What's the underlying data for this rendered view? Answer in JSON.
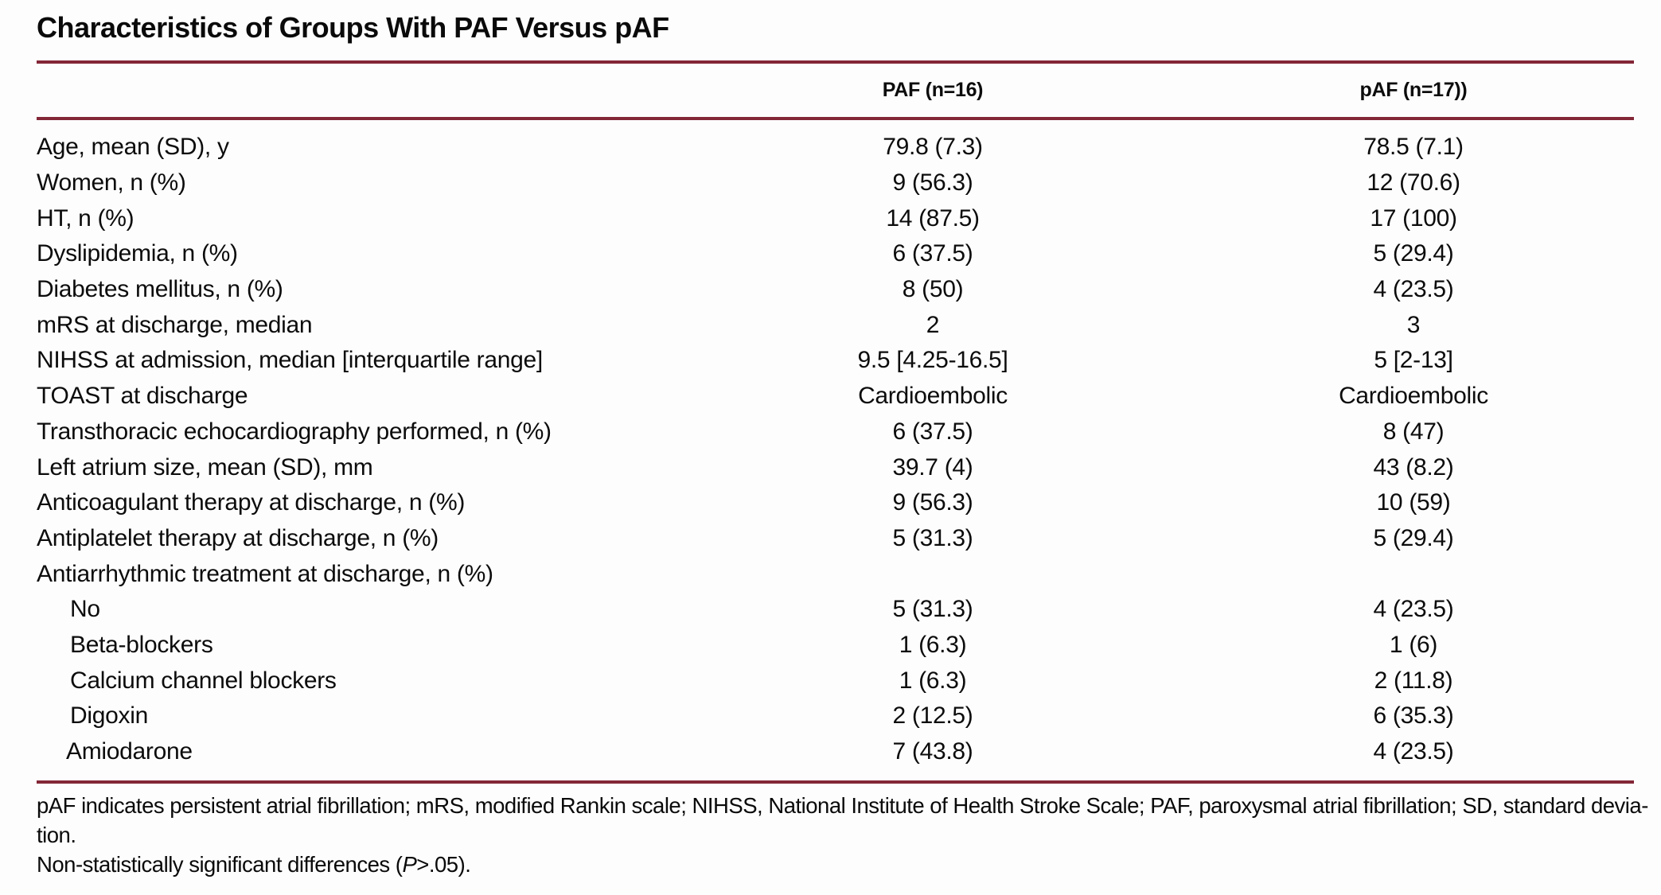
{
  "title": "Characteristics of Groups With PAF Versus pAF",
  "columns": [
    "PAF (n=16)",
    "pAF (n=17))"
  ],
  "rows": [
    {
      "label": "Age, mean (SD), y",
      "paf": "79.8 (7.3)",
      "ppaf": "78.5 (7.1)",
      "indent": 0
    },
    {
      "label": "Women, n (%)",
      "paf": "9 (56.3)",
      "ppaf": "12 (70.6)",
      "indent": 0
    },
    {
      "label": "HT, n (%)",
      "paf": "14 (87.5)",
      "ppaf": "17 (100)",
      "indent": 0
    },
    {
      "label": "Dyslipidemia, n (%)",
      "paf": "6 (37.5)",
      "ppaf": "5 (29.4)",
      "indent": 0
    },
    {
      "label": "Diabetes mellitus, n (%)",
      "paf": "8 (50)",
      "ppaf": "4 (23.5)",
      "indent": 0
    },
    {
      "label": "mRS at discharge, median",
      "paf": "2",
      "ppaf": "3",
      "indent": 0
    },
    {
      "label": "NIHSS at admission, median [interquartile range]",
      "paf": "9.5 [4.25-16.5]",
      "ppaf": "5 [2-13]",
      "indent": 0
    },
    {
      "label": "TOAST at discharge",
      "paf": "Cardioembolic",
      "ppaf": "Cardioembolic",
      "indent": 0
    },
    {
      "label": "Transthoracic echocardiography performed, n (%)",
      "paf": "6 (37.5)",
      "ppaf": "8 (47)",
      "indent": 0
    },
    {
      "label": "Left atrium size, mean (SD), mm",
      "paf": "39.7 (4)",
      "ppaf": "43 (8.2)",
      "indent": 0
    },
    {
      "label": "Anticoagulant therapy at discharge, n (%)",
      "paf": "9 (56.3)",
      "ppaf": "10 (59)",
      "indent": 0
    },
    {
      "label": "Antiplatelet therapy at discharge, n (%)",
      "paf": "5 (31.3)",
      "ppaf": "5 (29.4)",
      "indent": 0
    },
    {
      "label": "Antiarrhythmic treatment at discharge, n (%)",
      "paf": "",
      "ppaf": "",
      "indent": 0
    },
    {
      "label": "No",
      "paf": "5 (31.3)",
      "ppaf": "4 (23.5)",
      "indent": 2
    },
    {
      "label": "Beta-blockers",
      "paf": "1 (6.3)",
      "ppaf": "1 (6)",
      "indent": 2
    },
    {
      "label": "Calcium channel blockers",
      "paf": "1 (6.3)",
      "ppaf": "2 (11.8)",
      "indent": 2
    },
    {
      "label": "Digoxin",
      "paf": "2 (12.5)",
      "ppaf": "6 (35.3)",
      "indent": 2
    },
    {
      "label": "Amiodarone",
      "paf": "7 (43.8)",
      "ppaf": "4 (23.5)",
      "indent": 1
    }
  ],
  "footnotes": {
    "line1": "pAF indicates persistent atrial fibrillation; mRS, modified Rankin scale; NIHSS, National Institute of Health Stroke Scale; PAF, paroxysmal atrial fibrillation; SD, standard devia-",
    "line2": "tion.",
    "note_prefix": "Non-statistically significant differences (",
    "note_italic": "P",
    "note_suffix": ">.05)."
  },
  "colors": {
    "rule": "#832737",
    "text": "#0c0c0c",
    "background": "#fdfdfd"
  }
}
